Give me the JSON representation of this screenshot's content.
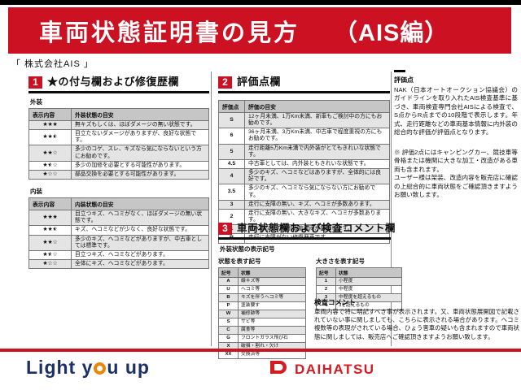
{
  "page": {
    "header_title": "車両状態証明書の見方",
    "header_edition": "（AIS編）",
    "company": "「 株式会社AIS 」"
  },
  "section1": {
    "number": "1",
    "title": "★の付与欄および修復歴欄",
    "exterior": {
      "label": "外装",
      "columns": [
        "表示内容",
        "外装状態の目安"
      ],
      "rows": [
        {
          "stars": 3,
          "desc": "無キズもしくは、ほぼダメージの無い状態です。"
        },
        {
          "stars": 2.5,
          "desc": "目立たないダメージがありますが、良好な状態です。"
        },
        {
          "stars": 2,
          "desc": "多少のコゲ、スレ、キズなら気にならないという方にお勧めです。"
        },
        {
          "stars": 1.5,
          "desc": "多少の加修を必要とする可能性があります。"
        },
        {
          "stars": 1,
          "desc": "部品交換を必要とする可能性があります。"
        }
      ]
    },
    "interior": {
      "label": "内装",
      "columns": [
        "表示内容",
        "内装状態の目安"
      ],
      "rows": [
        {
          "stars": 3,
          "desc": "目立つキズ、ヘコミがなく、ほぼダメージの無い状態です。"
        },
        {
          "stars": 2.5,
          "desc": "キズ、ヘコミなどが少なく、良好な状態です。"
        },
        {
          "stars": 2,
          "desc": "多少のキズ、ヘコミなどがありますが、中古車としては標準です。"
        },
        {
          "stars": 1.5,
          "desc": "目立つキズ、ヘコミなどがあります。"
        },
        {
          "stars": 1,
          "desc": "全体にキズ、ヘコミなどがあります。"
        }
      ]
    }
  },
  "section2": {
    "number": "2",
    "title": "評価点欄",
    "table": {
      "columns": [
        "評価点",
        "評価の目安"
      ],
      "rows": [
        [
          "S",
          "12ヶ月未満、1万Km未満、新車もご検討中の方にもお勧めです。"
        ],
        [
          "6",
          "36ヶ月未満、3万Km未満、中古車で程度重視の方にもお勧めです。"
        ],
        [
          "5",
          "走行距離5万Km未満で内外装がとてもきれいな状態です。"
        ],
        [
          "4.5",
          "中古車としては、内外装ともきれいな状態です。"
        ],
        [
          "4",
          "多少のキズ、ヘコミなどはありますが、全体的には良好です。"
        ],
        [
          "3.5",
          "多少のキズ、ヘコミなら気にならない方にお勧めです。"
        ],
        [
          "3",
          "走行に支障の無い、キズ、ヘコミが多数あります。"
        ],
        [
          "2",
          "走行に支障の無い、大きなキズ、ヘコミが多数あります。"
        ],
        [
          "1",
          "冠水車などの特別瑕疵車両が該当します。"
        ],
        [
          "R",
          "走行に支障がない修復歴車です。"
        ]
      ]
    },
    "side": {
      "heading": "評価点",
      "body": "NAK（日本オートオークション協議会）のガイドラインを取り入れたAIS検査基準に基づき、車両検査専門会社AISによる検査で、S点からR点までの10段階で表示します。年式、走行距離などの車両基本情報に内外装の総合的な評価が評価点となります。",
      "note1": "※ 評価2点にはキャンピングカー、競技車等骨格または機関に大きな加工・改造がある車両も含まれます。",
      "note2": "ユーザー様は架装、改造内容を販売店に確認の上総合的に車両状態をご確認頂きますようお願い致します。"
    }
  },
  "section3": {
    "number": "3",
    "title": "車両状態欄および検査コメント欄",
    "subheading": "外装状態の表示記号",
    "symbol_table": {
      "label": "状態を表す記号",
      "columns": [
        "記号",
        "状態"
      ],
      "rows": [
        [
          "A",
          "線キズ等"
        ],
        [
          "U",
          "ヘコミ等"
        ],
        [
          "B",
          "キズを伴うヘコミ等"
        ],
        [
          "P",
          "塗装要す"
        ],
        [
          "W",
          "補修跡等"
        ],
        [
          "S",
          "サビ等"
        ],
        [
          "C",
          "腐食等"
        ],
        [
          "G",
          "フロントガラス飛び石"
        ],
        [
          "X",
          "破損・割れ・欠け"
        ],
        [
          "XX",
          "交換済等"
        ]
      ]
    },
    "size_table": {
      "label": "大きさを表す記号",
      "columns": [
        "記号",
        "状態"
      ],
      "rows": [
        [
          "1",
          "小程度"
        ],
        [
          "2",
          "中程度"
        ],
        [
          "3",
          "中程度を超えるもの"
        ],
        [
          "4",
          "3を超えるもの"
        ]
      ]
    },
    "comment": {
      "heading": "検査コメント",
      "body": "車両内容で特に明記すべき事が表示されます。又、車両状態展開図で記載されていない事に関しましても、こちらに表示される場合があります。ヘコミ複数等の表現がされている場合、ひょう害車の疑いも含まれますので車両状態に関しましては、販売店へご確認頂きますようお願い致します。"
    }
  },
  "footer": {
    "slogan_text": "Light you up",
    "slogan_part1": "Light y",
    "slogan_part2": "u up",
    "brand": "DAIHATSU"
  },
  "colors": {
    "header_red": "#cc1122",
    "slogan_navy": "#1c2f67",
    "slogan_orange": "#f08300",
    "brand_red": "#d71920"
  }
}
